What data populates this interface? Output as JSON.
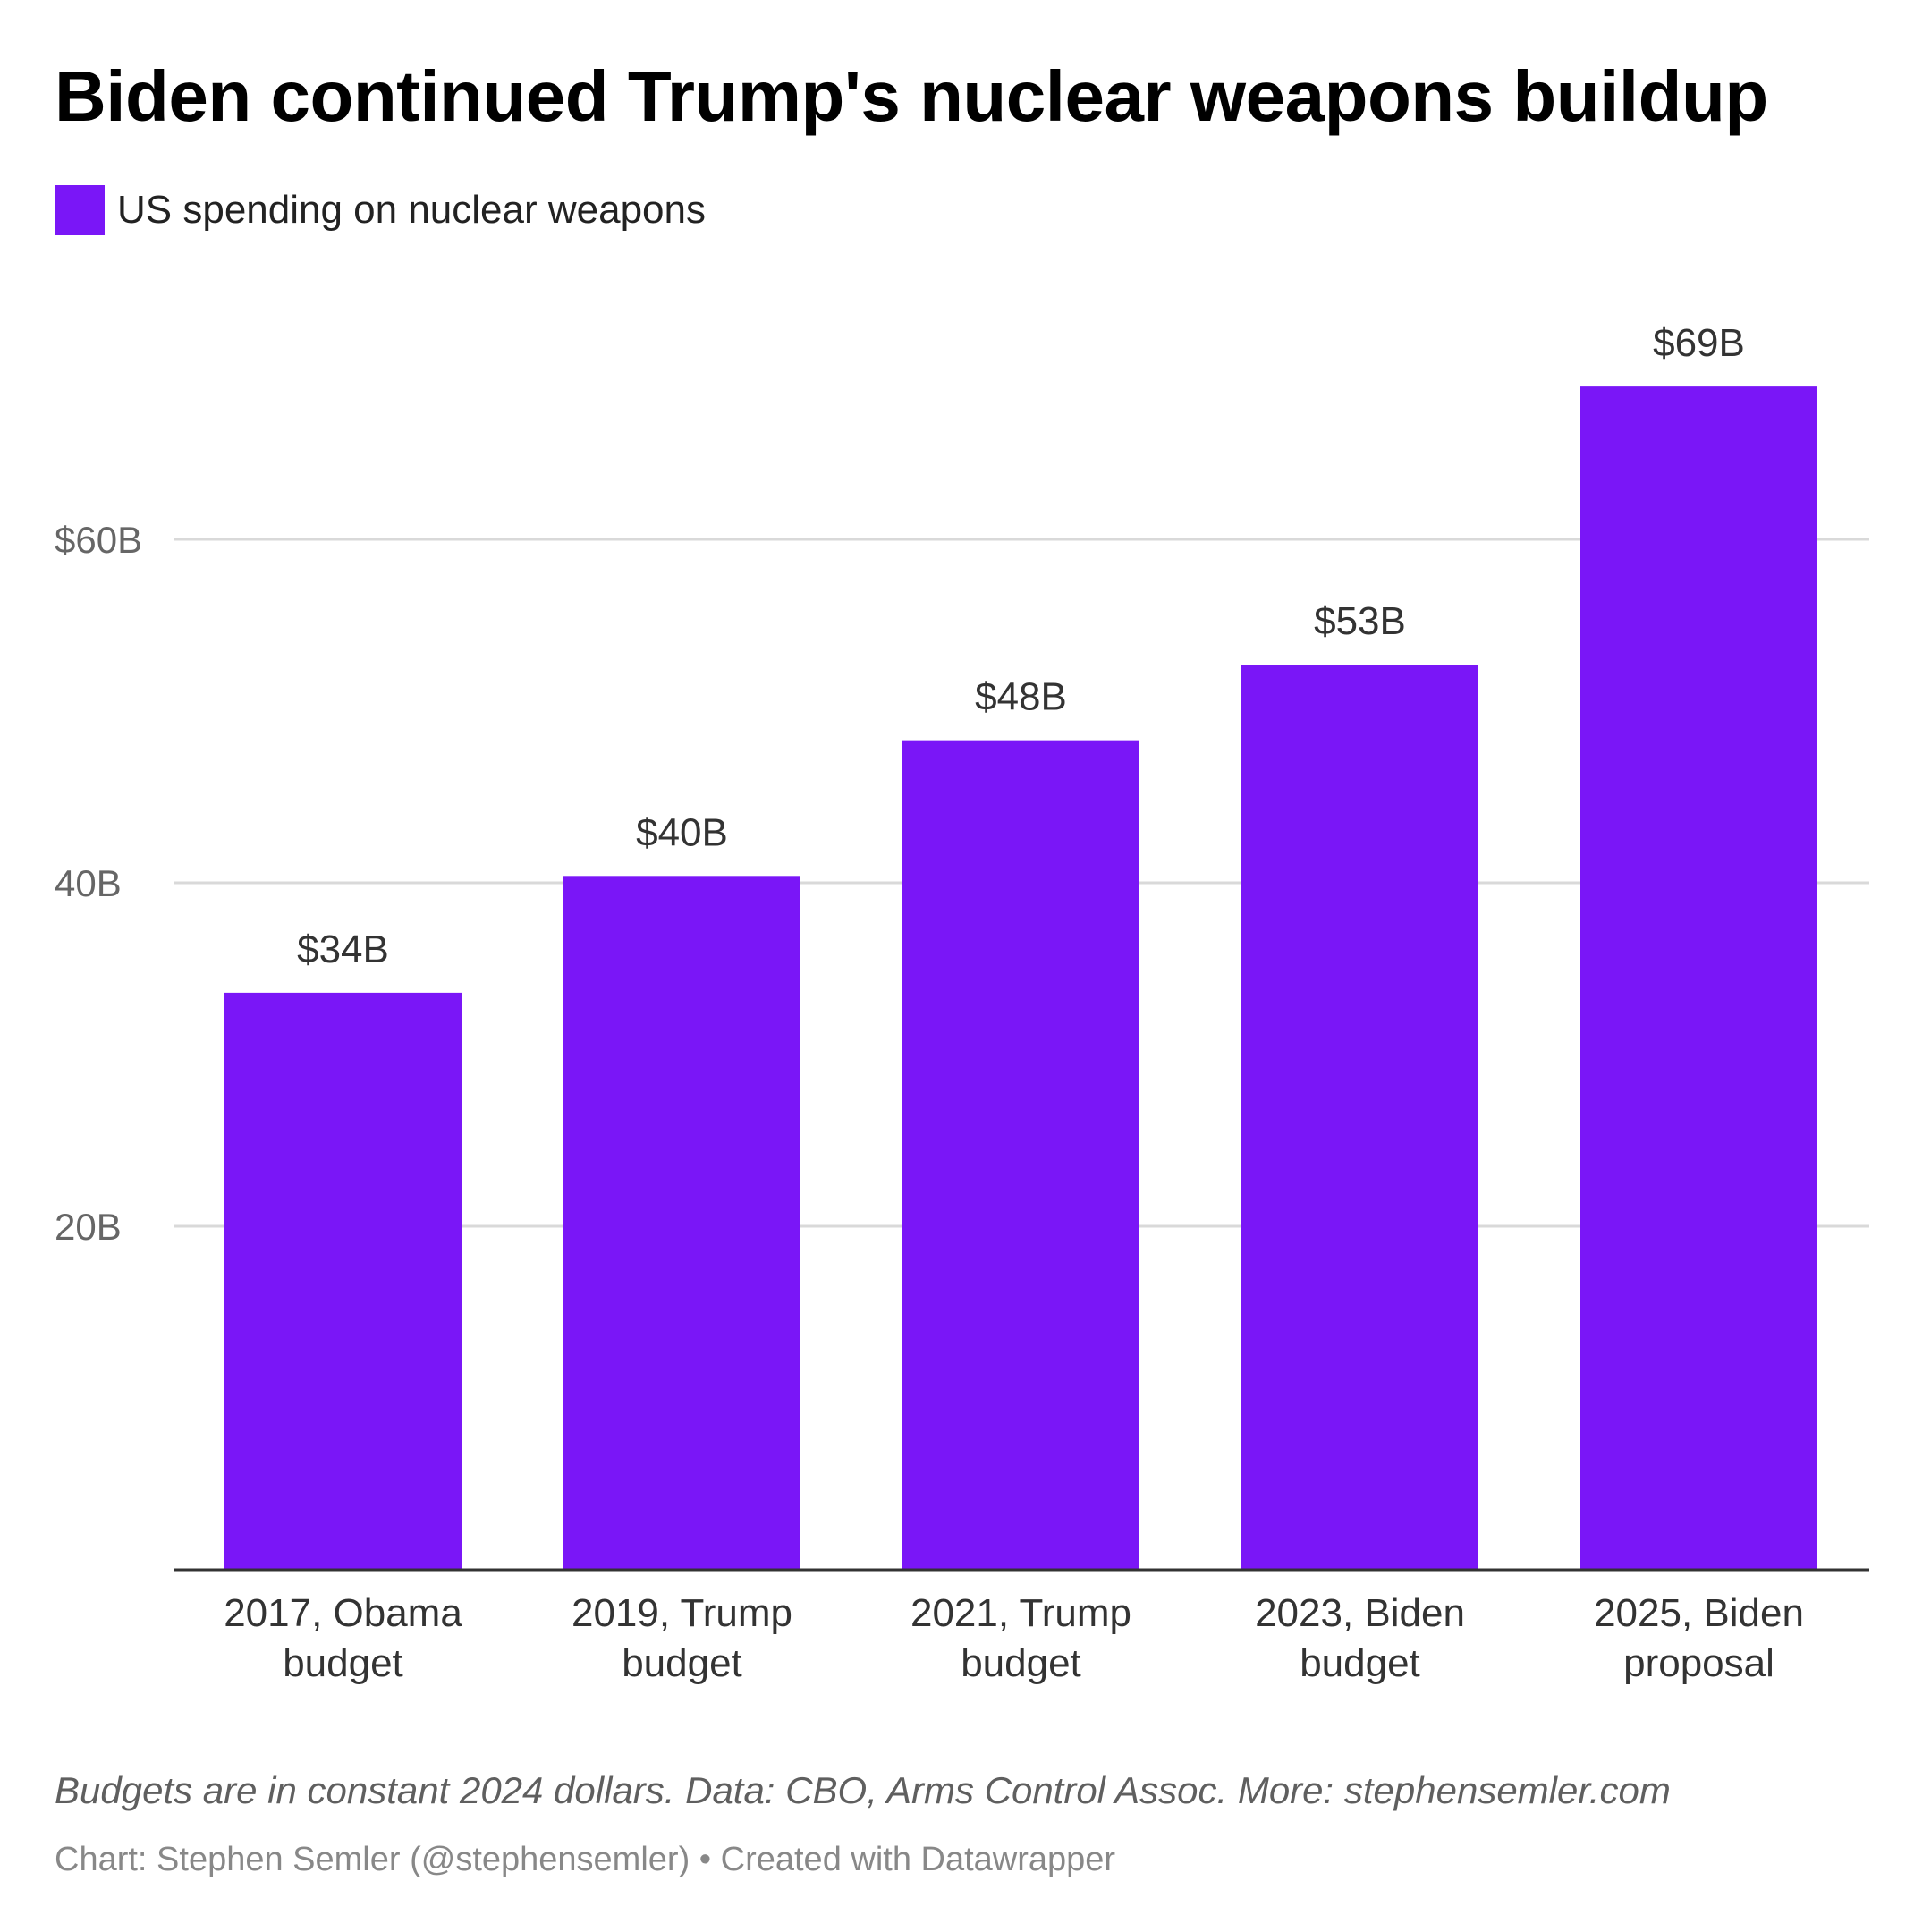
{
  "chart_data": {
    "type": "bar",
    "title": "Biden continued Trump's nuclear weapons buildup",
    "categories": [
      [
        "2017, Obama",
        "budget"
      ],
      [
        "2019, Trump",
        "budget"
      ],
      [
        "2021, Trump",
        "budget"
      ],
      [
        "2023, Biden",
        "budget"
      ],
      [
        "2025, Biden",
        "proposal"
      ]
    ],
    "series": [
      {
        "name": "US spending on nuclear weapons",
        "values": [
          33.6,
          40.4,
          48.3,
          52.7,
          68.9
        ],
        "data_labels": [
          "$34B",
          "$40B",
          "$48B",
          "$53B",
          "$69B"
        ],
        "color": "#7a16f7"
      }
    ],
    "y_ticks": [
      {
        "value": 20,
        "label": "20B"
      },
      {
        "value": 40,
        "label": "40B"
      },
      {
        "value": 60,
        "label": "$60B"
      }
    ],
    "ylim": [
      0,
      75
    ],
    "grid": true,
    "legend_position": "top-left",
    "xlabel": "",
    "ylabel": "",
    "colors": {
      "bar": "#7a16f7",
      "grid": "#d9d9d9",
      "baseline": "#333333",
      "tick_label": "#666666",
      "value_label": "#333333",
      "category_label": "#333333"
    }
  },
  "footer": {
    "note": "Budgets are in constant 2024 dollars. Data: CBO, Arms Control Assoc. More: stephensemler.com",
    "credit": "Chart: Stephen Semler (@stephensemler) • Created with Datawrapper"
  }
}
